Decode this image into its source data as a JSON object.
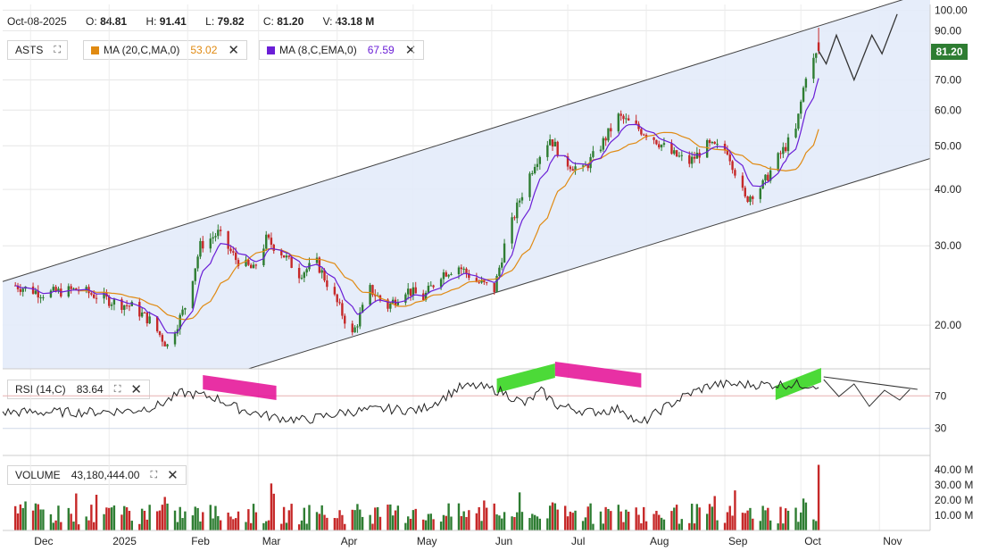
{
  "header": {
    "date": "Oct-08-2025",
    "open_label": "O:",
    "open": "84.81",
    "high_label": "H:",
    "high": "91.41",
    "low_label": "L:",
    "low": "79.82",
    "close_label": "C:",
    "close": "81.20",
    "volume_label": "V:",
    "volume": "43.18 M"
  },
  "symbol_chip": {
    "label": "ASTS"
  },
  "ma20_chip": {
    "label": "MA (20,C,MA,0)",
    "value": "53.02",
    "color": "#e08a12"
  },
  "ma8_chip": {
    "label": "MA (8,C,EMA,0)",
    "value": "67.59",
    "color": "#6a1ed6"
  },
  "rsi_chip": {
    "label": "RSI (14,C)",
    "value": "83.64"
  },
  "volume_chip": {
    "label": "VOLUME",
    "value": "43,180,444.00"
  },
  "last_price_tag": {
    "value": "81.20",
    "color": "#2e7d32"
  },
  "colors": {
    "up": "#2e7d32",
    "down": "#c62828",
    "channel_fill": "#e3ebfa",
    "pink_highlight": "#e6199a",
    "green_highlight": "#39d622"
  },
  "chart_data": {
    "type": "candlestick",
    "symbol": "ASTS",
    "x_tick_labels": [
      "Dec",
      "2025",
      "Feb",
      "Mar",
      "Apr",
      "May",
      "Jun",
      "Jul",
      "Aug",
      "Sep",
      "Oct",
      "Nov"
    ],
    "price_axis": {
      "scale": "log",
      "ticks": [
        "20.00",
        "30.00",
        "40.00",
        "50.00",
        "60.00",
        "70.00",
        "90.00",
        "100.00"
      ],
      "range": [
        16,
        102
      ]
    },
    "price_path_points": [
      [
        "2024-11-25",
        24.5
      ],
      [
        "2024-12-06",
        23.5
      ],
      [
        "2024-12-20",
        24
      ],
      [
        "2025-01-03",
        22.5
      ],
      [
        "2025-01-10",
        22
      ],
      [
        "2025-01-17",
        20.5
      ],
      [
        "2025-01-24",
        18
      ],
      [
        "2025-01-31",
        22
      ],
      [
        "2025-02-06",
        30
      ],
      [
        "2025-02-13",
        32
      ],
      [
        "2025-02-20",
        28
      ],
      [
        "2025-02-27",
        26.5
      ],
      [
        "2025-03-04",
        31
      ],
      [
        "2025-03-10",
        29
      ],
      [
        "2025-03-17",
        26
      ],
      [
        "2025-03-24",
        27.5
      ],
      [
        "2025-03-31",
        23
      ],
      [
        "2025-04-07",
        19
      ],
      [
        "2025-04-14",
        24
      ],
      [
        "2025-04-21",
        22
      ],
      [
        "2025-04-28",
        24
      ],
      [
        "2025-05-05",
        23
      ],
      [
        "2025-05-12",
        26
      ],
      [
        "2025-05-19",
        27
      ],
      [
        "2025-05-26",
        25
      ],
      [
        "2025-06-02",
        24
      ],
      [
        "2025-06-06",
        30
      ],
      [
        "2025-06-12",
        38
      ],
      [
        "2025-06-18",
        46
      ],
      [
        "2025-06-24",
        52
      ],
      [
        "2025-06-30",
        46
      ],
      [
        "2025-07-07",
        44
      ],
      [
        "2025-07-14",
        50
      ],
      [
        "2025-07-21",
        58
      ],
      [
        "2025-07-28",
        55
      ],
      [
        "2025-08-04",
        52
      ],
      [
        "2025-08-11",
        48
      ],
      [
        "2025-08-18",
        46
      ],
      [
        "2025-08-25",
        50
      ],
      [
        "2025-09-02",
        49
      ],
      [
        "2025-09-09",
        38
      ],
      [
        "2025-09-16",
        41
      ],
      [
        "2025-09-22",
        47
      ],
      [
        "2025-09-29",
        54
      ],
      [
        "2025-10-03",
        72
      ],
      [
        "2025-10-08",
        81.2
      ]
    ],
    "channel": {
      "upper": [
        [
          "2024-11-25",
          25.5
        ],
        [
          "2025-10-28",
          100
        ]
      ],
      "lower": [
        [
          "2025-02-25",
          14
        ],
        [
          "2025-11-12",
          45
        ]
      ]
    },
    "projection_path": [
      [
        "2025-10-08",
        81.2
      ],
      [
        "2025-10-11",
        76
      ],
      [
        "2025-10-15",
        88
      ],
      [
        "2025-10-22",
        70
      ],
      [
        "2025-10-29",
        88
      ],
      [
        "2025-11-02",
        80
      ],
      [
        "2025-11-08",
        98
      ]
    ],
    "moving_averages": [
      {
        "name": "MA (20,C,MA,0)",
        "last": 53.02
      },
      {
        "name": "MA (8,C,EMA,0)",
        "last": 67.59
      }
    ],
    "rsi": {
      "name": "RSI (14,C)",
      "last": 83.64,
      "levels": [
        70,
        30
      ],
      "ticks": [
        "70",
        "30"
      ],
      "points": [
        [
          0,
          50
        ],
        [
          0.1,
          50
        ],
        [
          0.16,
          52
        ],
        [
          0.19,
          58
        ],
        [
          0.22,
          74
        ],
        [
          0.26,
          68
        ],
        [
          0.29,
          54
        ],
        [
          0.33,
          44
        ],
        [
          0.37,
          40
        ],
        [
          0.42,
          50
        ],
        [
          0.47,
          54
        ],
        [
          0.51,
          52
        ],
        [
          0.53,
          62
        ],
        [
          0.56,
          80
        ],
        [
          0.58,
          82
        ],
        [
          0.61,
          76
        ],
        [
          0.64,
          60
        ],
        [
          0.66,
          76
        ],
        [
          0.68,
          58
        ],
        [
          0.72,
          50
        ],
        [
          0.76,
          54
        ],
        [
          0.78,
          34
        ],
        [
          0.81,
          55
        ],
        [
          0.84,
          72
        ],
        [
          0.87,
          84
        ]
      ]
    },
    "volume": {
      "name": "VOLUME",
      "last": "43,180,444.00",
      "ticks": [
        "40.00 M",
        "30.00 M",
        "20.00 M",
        "10.00 M"
      ],
      "max_millions": 47
    }
  }
}
